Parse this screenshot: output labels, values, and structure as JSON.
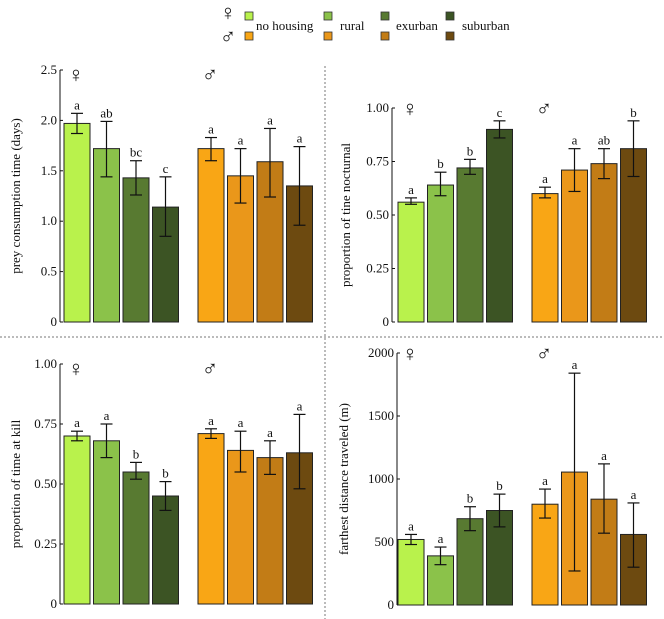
{
  "legend": {
    "female_symbol": "♀",
    "male_symbol": "♂",
    "entries": [
      {
        "label": "no housing",
        "female_color": "#b9f24c",
        "male_color": "#f9a615"
      },
      {
        "label": "rural",
        "female_color": "#8bc24a",
        "male_color": "#ea971a"
      },
      {
        "label": "exurban",
        "female_color": "#587a31",
        "male_color": "#c27c16"
      },
      {
        "label": "suburban",
        "female_color": "#3c5424",
        "male_color": "#6d4a10"
      }
    ]
  },
  "chart_data": [
    {
      "type": "bar",
      "ylabel": "prey consumption time (days)",
      "ylim": [
        0,
        2.5
      ],
      "yticks": [
        "0",
        "0.5",
        "1.0",
        "1.5",
        "2.0",
        "2.5"
      ],
      "ytick_values": [
        0,
        0.5,
        1.0,
        1.5,
        2.0,
        2.5
      ],
      "categories": [
        "no housing",
        "rural",
        "exurban",
        "suburban"
      ],
      "series": [
        {
          "name": "♀",
          "values": [
            1.97,
            1.72,
            1.43,
            1.14
          ],
          "err_low": [
            1.87,
            1.44,
            1.26,
            0.85
          ],
          "err_high": [
            2.07,
            1.99,
            1.6,
            1.44
          ],
          "letters": [
            "a",
            "ab",
            "bc",
            "c"
          ]
        },
        {
          "name": "♂",
          "values": [
            1.72,
            1.45,
            1.59,
            1.35
          ],
          "err_low": [
            1.6,
            1.18,
            1.24,
            0.96
          ],
          "err_high": [
            1.83,
            1.72,
            1.92,
            1.74
          ],
          "letters": [
            "a",
            "a",
            "a",
            "a"
          ]
        }
      ]
    },
    {
      "type": "bar",
      "ylabel": "proportion of tine nocturnal",
      "ylim": [
        0,
        1.0
      ],
      "yticks": [
        "0",
        "0.25",
        "0.50",
        "0.75",
        "1.00"
      ],
      "ytick_values": [
        0,
        0.25,
        0.5,
        0.75,
        1.0
      ],
      "categories": [
        "no housing",
        "rural",
        "exurban",
        "suburban"
      ],
      "series": [
        {
          "name": "♀",
          "values": [
            0.56,
            0.64,
            0.72,
            0.9
          ],
          "err_low": [
            0.55,
            0.59,
            0.69,
            0.86
          ],
          "err_high": [
            0.58,
            0.7,
            0.76,
            0.94
          ],
          "letters": [
            "a",
            "b",
            "b",
            "c"
          ]
        },
        {
          "name": "♂",
          "values": [
            0.6,
            0.71,
            0.74,
            0.81
          ],
          "err_low": [
            0.58,
            0.61,
            0.67,
            0.68
          ],
          "err_high": [
            0.63,
            0.81,
            0.81,
            0.94
          ],
          "letters": [
            "a",
            "a",
            "ab",
            "b"
          ]
        }
      ]
    },
    {
      "type": "bar",
      "ylabel": "proportion of time at kill",
      "ylim": [
        0,
        1.0
      ],
      "yticks": [
        "0",
        "0.25",
        "0.50",
        "0.75",
        "1.00"
      ],
      "ytick_values": [
        0,
        0.25,
        0.5,
        0.75,
        1.0
      ],
      "categories": [
        "no housing",
        "rural",
        "exurban",
        "suburban"
      ],
      "series": [
        {
          "name": "♀",
          "values": [
            0.7,
            0.68,
            0.55,
            0.45
          ],
          "err_low": [
            0.68,
            0.61,
            0.52,
            0.39
          ],
          "err_high": [
            0.72,
            0.75,
            0.59,
            0.51
          ],
          "letters": [
            "a",
            "a",
            "b",
            "b"
          ]
        },
        {
          "name": "♂",
          "values": [
            0.71,
            0.64,
            0.61,
            0.63
          ],
          "err_low": [
            0.69,
            0.55,
            0.54,
            0.48
          ],
          "err_high": [
            0.73,
            0.72,
            0.68,
            0.79
          ],
          "letters": [
            "a",
            "a",
            "a",
            "a"
          ]
        }
      ]
    },
    {
      "type": "bar",
      "ylabel": "farthest distance traveled (m)",
      "ylim": [
        0,
        2000
      ],
      "yticks": [
        "0",
        "500",
        "1000",
        "1500",
        "2000"
      ],
      "ytick_values": [
        0,
        500,
        1000,
        1500,
        2000
      ],
      "categories": [
        "no housing",
        "rural",
        "exurban",
        "suburban"
      ],
      "series": [
        {
          "name": "♀",
          "values": [
            520,
            390,
            685,
            750
          ],
          "err_low": [
            480,
            320,
            590,
            620
          ],
          "err_high": [
            560,
            460,
            780,
            880
          ],
          "letters": [
            "a",
            "a",
            "b",
            "b"
          ]
        },
        {
          "name": "♂",
          "values": [
            800,
            1055,
            840,
            560
          ],
          "err_low": [
            690,
            270,
            570,
            300
          ],
          "err_high": [
            920,
            1840,
            1120,
            810
          ],
          "letters": [
            "a",
            "a",
            "a",
            "a"
          ]
        }
      ]
    }
  ]
}
